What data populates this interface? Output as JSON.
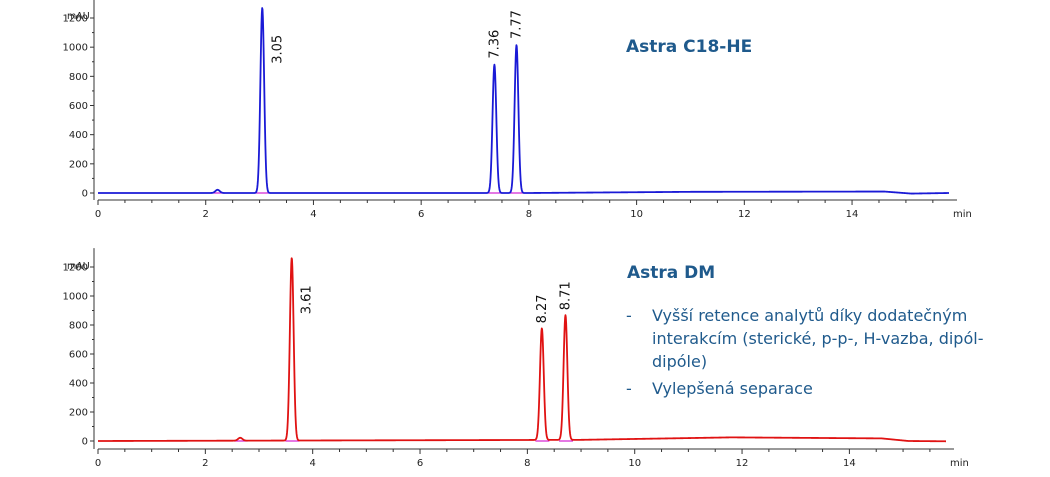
{
  "chart_data": [
    {
      "type": "line",
      "title": "Astra C18-HE",
      "ylabel": "mAU",
      "xlabel": "min",
      "xlim": [
        0,
        15.8
      ],
      "ylim": [
        -60,
        1330
      ],
      "x_ticks": [
        0,
        2,
        4,
        6,
        8,
        10,
        12,
        14
      ],
      "y_ticks": [
        0,
        200,
        400,
        600,
        800,
        1000,
        1200
      ],
      "colors": {
        "trace": "#1a1ad6",
        "baseline": "#d21fd2"
      },
      "grid": false,
      "peaks": [
        {
          "rt": 3.05,
          "height": 1270,
          "label": "3.05"
        },
        {
          "rt": 7.36,
          "height": 880,
          "label": "7.36"
        },
        {
          "rt": 7.77,
          "height": 1015,
          "label": "7.77"
        }
      ],
      "minor_peaks": [
        {
          "rt": 2.22,
          "height": 22
        }
      ],
      "baseline_drift": [
        [
          0,
          0
        ],
        [
          8,
          0
        ],
        [
          11,
          8
        ],
        [
          14.6,
          10
        ],
        [
          15.1,
          -4
        ],
        [
          15.8,
          0
        ]
      ]
    },
    {
      "type": "line",
      "title": "Astra DM",
      "ylabel": "mAU",
      "xlabel": "min",
      "xlim": [
        0,
        15.8
      ],
      "ylim": [
        -60,
        1330
      ],
      "x_ticks": [
        0,
        2,
        4,
        6,
        8,
        10,
        12,
        14
      ],
      "y_ticks": [
        0,
        200,
        400,
        600,
        800,
        1000,
        1200
      ],
      "colors": {
        "trace": "#e01212",
        "baseline": "#d21fd2"
      },
      "grid": false,
      "peaks": [
        {
          "rt": 3.61,
          "height": 1260,
          "label": "3.61"
        },
        {
          "rt": 8.27,
          "height": 770,
          "label": "8.27"
        },
        {
          "rt": 8.71,
          "height": 860,
          "label": "8.71"
        }
      ],
      "minor_peaks": [
        {
          "rt": 2.65,
          "height": 20
        }
      ],
      "baseline_drift": [
        [
          0,
          0
        ],
        [
          9,
          8
        ],
        [
          11.8,
          25
        ],
        [
          14.6,
          18
        ],
        [
          15.1,
          0
        ],
        [
          15.8,
          -2
        ]
      ]
    }
  ],
  "notes": [
    {
      "dash": "-",
      "text": "Vyšší retence analytů díky dodatečným interakcím (sterické, p-p-, H-vazba, dipól-dipóle)"
    },
    {
      "dash": "-",
      "text": "Vylepšená separace"
    }
  ],
  "title_color": "#1f5a8c"
}
